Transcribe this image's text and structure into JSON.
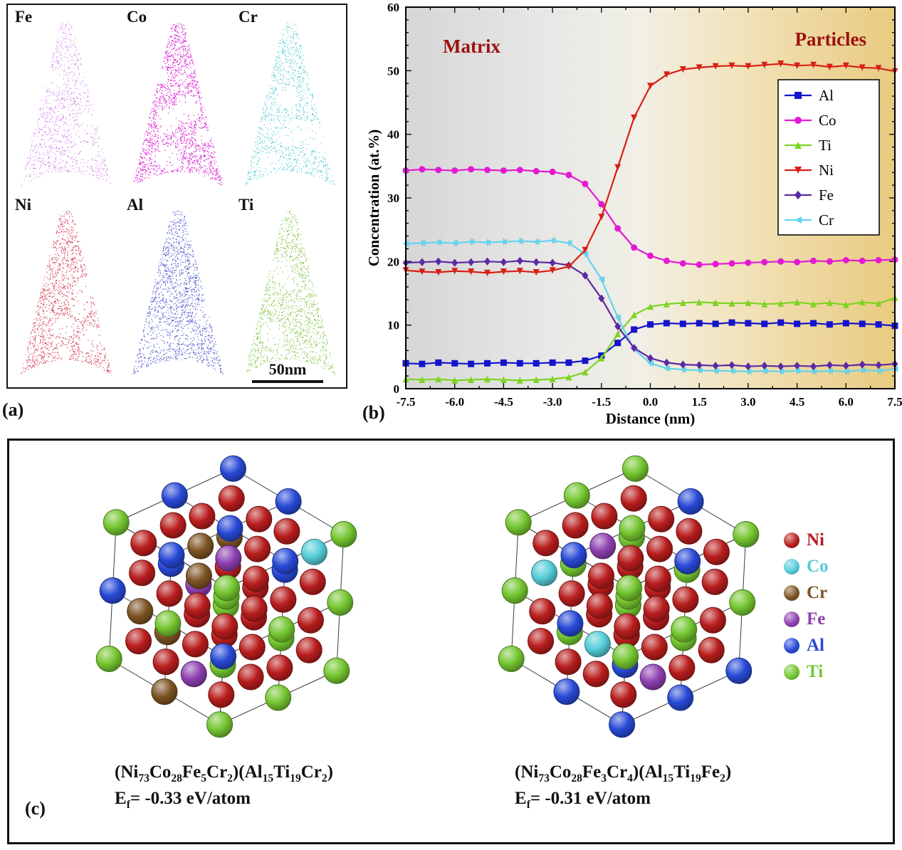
{
  "figure": {
    "panel_a_label": "(a)",
    "panel_b_label": "(b)",
    "panel_c_label": "(c)"
  },
  "panel_a": {
    "maps": [
      {
        "element": "Fe",
        "color": "#c969e3"
      },
      {
        "element": "Co",
        "color": "#d91fd0"
      },
      {
        "element": "Cr",
        "color": "#3fc3cb"
      },
      {
        "element": "Ni",
        "color": "#ce2540"
      },
      {
        "element": "Al",
        "color": "#2d3bc4"
      },
      {
        "element": "Ti",
        "color": "#6cba25"
      }
    ],
    "scale_label": "50nm"
  },
  "chart_data": {
    "type": "line",
    "title": "",
    "xlabel": "Distance (nm)",
    "ylabel": "Concentration (at.%)",
    "xlim": [
      -7.5,
      7.5
    ],
    "ylim": [
      0,
      60
    ],
    "xticks": [
      "-7.5",
      "-6.0",
      "-4.5",
      "-3.0",
      "-1.5",
      "0.0",
      "1.5",
      "3.0",
      "4.5",
      "6.0",
      "7.5"
    ],
    "yticks": [
      "0",
      "10",
      "20",
      "30",
      "40",
      "50",
      "60"
    ],
    "region_labels": {
      "matrix": "Matrix",
      "particles": "Particles",
      "color": "#9b1111"
    },
    "background": {
      "left_color": "#d6d6d6",
      "right_color": "#e9cb80"
    },
    "legend_order": [
      "Al",
      "Co",
      "Ti",
      "Ni",
      "Fe",
      "Cr"
    ],
    "x": [
      -7.5,
      -7.0,
      -6.5,
      -6.0,
      -5.5,
      -5.0,
      -4.5,
      -4.0,
      -3.5,
      -3.0,
      -2.5,
      -2.0,
      -1.5,
      -1.0,
      -0.5,
      0.0,
      0.5,
      1.0,
      1.5,
      2.0,
      2.5,
      3.0,
      3.5,
      4.0,
      4.5,
      5.0,
      5.5,
      6.0,
      6.5,
      7.0,
      7.5
    ],
    "series": [
      {
        "name": "Al",
        "color": "#1414cc",
        "marker": "square",
        "values": [
          4.0,
          3.9,
          4.1,
          4.0,
          3.9,
          4.0,
          4.1,
          4.0,
          4.0,
          4.1,
          4.1,
          4.4,
          5.2,
          7.2,
          9.3,
          10.1,
          10.3,
          10.2,
          10.3,
          10.2,
          10.4,
          10.3,
          10.2,
          10.4,
          10.2,
          10.3,
          10.1,
          10.3,
          10.2,
          10.1,
          9.9
        ]
      },
      {
        "name": "Co",
        "color": "#e21ad2",
        "marker": "circle",
        "values": [
          34.3,
          34.5,
          34.4,
          34.3,
          34.5,
          34.4,
          34.3,
          34.4,
          34.2,
          34.1,
          33.6,
          32.2,
          29.0,
          25.2,
          22.2,
          20.9,
          20.1,
          19.7,
          19.5,
          19.6,
          19.7,
          19.8,
          19.9,
          20.0,
          19.9,
          20.1,
          20.0,
          20.2,
          20.1,
          20.2,
          20.3
        ]
      },
      {
        "name": "Ti",
        "color": "#7ed321",
        "marker": "triangle-up",
        "values": [
          1.5,
          1.4,
          1.5,
          1.3,
          1.4,
          1.5,
          1.4,
          1.3,
          1.4,
          1.5,
          1.8,
          2.6,
          4.8,
          8.6,
          11.6,
          12.9,
          13.3,
          13.5,
          13.6,
          13.5,
          13.4,
          13.5,
          13.3,
          13.4,
          13.6,
          13.3,
          13.5,
          13.2,
          13.6,
          13.4,
          14.3
        ]
      },
      {
        "name": "Ni",
        "color": "#d81f14",
        "marker": "triangle-down",
        "values": [
          18.6,
          18.4,
          18.3,
          18.5,
          18.4,
          18.2,
          18.4,
          18.5,
          18.3,
          18.6,
          19.2,
          21.8,
          27.0,
          34.8,
          42.6,
          47.6,
          49.4,
          50.2,
          50.5,
          50.7,
          50.8,
          50.7,
          50.9,
          51.1,
          50.8,
          50.9,
          50.6,
          50.8,
          50.5,
          50.4,
          49.9
        ]
      },
      {
        "name": "Fe",
        "color": "#5b2aa6",
        "marker": "diamond",
        "values": [
          19.8,
          19.9,
          20.0,
          19.8,
          19.9,
          20.0,
          19.9,
          20.1,
          19.9,
          19.8,
          19.4,
          17.8,
          14.2,
          9.8,
          6.4,
          4.8,
          4.1,
          3.8,
          3.7,
          3.6,
          3.7,
          3.5,
          3.6,
          3.5,
          3.6,
          3.5,
          3.7,
          3.6,
          3.8,
          3.7,
          3.9
        ]
      },
      {
        "name": "Cr",
        "color": "#63d4ee",
        "marker": "triangle-left",
        "values": [
          22.8,
          22.9,
          23.0,
          22.9,
          23.1,
          23.0,
          23.1,
          23.2,
          23.1,
          23.3,
          22.9,
          21.2,
          17.2,
          11.2,
          6.2,
          4.0,
          3.2,
          3.0,
          2.9,
          2.8,
          2.8,
          2.7,
          2.8,
          2.7,
          2.8,
          2.7,
          2.8,
          2.7,
          2.9,
          2.8,
          3.1
        ]
      }
    ]
  },
  "panel_c": {
    "structures": [
      {
        "formula_text": "(Ni73Co28Fe5Cr2)(Al15Ti19Cr2)",
        "energy_text": "Ef= -0.33 eV/atom",
        "formula_segments": [
          {
            "t": "(Ni"
          },
          {
            "t": "73",
            "sub": true
          },
          {
            "t": "Co"
          },
          {
            "t": "28",
            "sub": true
          },
          {
            "t": "Fe"
          },
          {
            "t": "5",
            "sub": true
          },
          {
            "t": "Cr"
          },
          {
            "t": "2",
            "sub": true
          },
          {
            "t": ")(Al"
          },
          {
            "t": "15",
            "sub": true
          },
          {
            "t": "Ti"
          },
          {
            "t": "19",
            "sub": true
          },
          {
            "t": "Cr"
          },
          {
            "t": "2",
            "sub": true
          },
          {
            "t": ")"
          }
        ],
        "energy_segments": [
          {
            "t": "E"
          },
          {
            "t": "f",
            "sub": true
          },
          {
            "t": "= -0.33 eV/atom"
          }
        ]
      },
      {
        "formula_text": "(Ni73Co28Fe3Cr4)(Al15Ti19Fe2)",
        "energy_text": "Ef= -0.31 eV/atom",
        "formula_segments": [
          {
            "t": "(Ni"
          },
          {
            "t": "73",
            "sub": true
          },
          {
            "t": "Co"
          },
          {
            "t": "28",
            "sub": true
          },
          {
            "t": "Fe"
          },
          {
            "t": "3",
            "sub": true
          },
          {
            "t": "Cr"
          },
          {
            "t": "4",
            "sub": true
          },
          {
            "t": ")(Al"
          },
          {
            "t": "15",
            "sub": true
          },
          {
            "t": "Ti"
          },
          {
            "t": "19",
            "sub": true
          },
          {
            "t": "Fe"
          },
          {
            "t": "2",
            "sub": true
          },
          {
            "t": ")"
          }
        ],
        "energy_segments": [
          {
            "t": "E"
          },
          {
            "t": "f",
            "sub": true
          },
          {
            "t": "= -0.31 eV/atom"
          }
        ]
      }
    ],
    "legend": [
      {
        "element": "Ni",
        "color": "#b91d1d"
      },
      {
        "element": "Co",
        "color": "#55ccd8"
      },
      {
        "element": "Cr",
        "color": "#7d5323"
      },
      {
        "element": "Fe",
        "color": "#8d3fb0"
      },
      {
        "element": "Al",
        "color": "#2849d6"
      },
      {
        "element": "Ti",
        "color": "#74c630"
      }
    ]
  }
}
